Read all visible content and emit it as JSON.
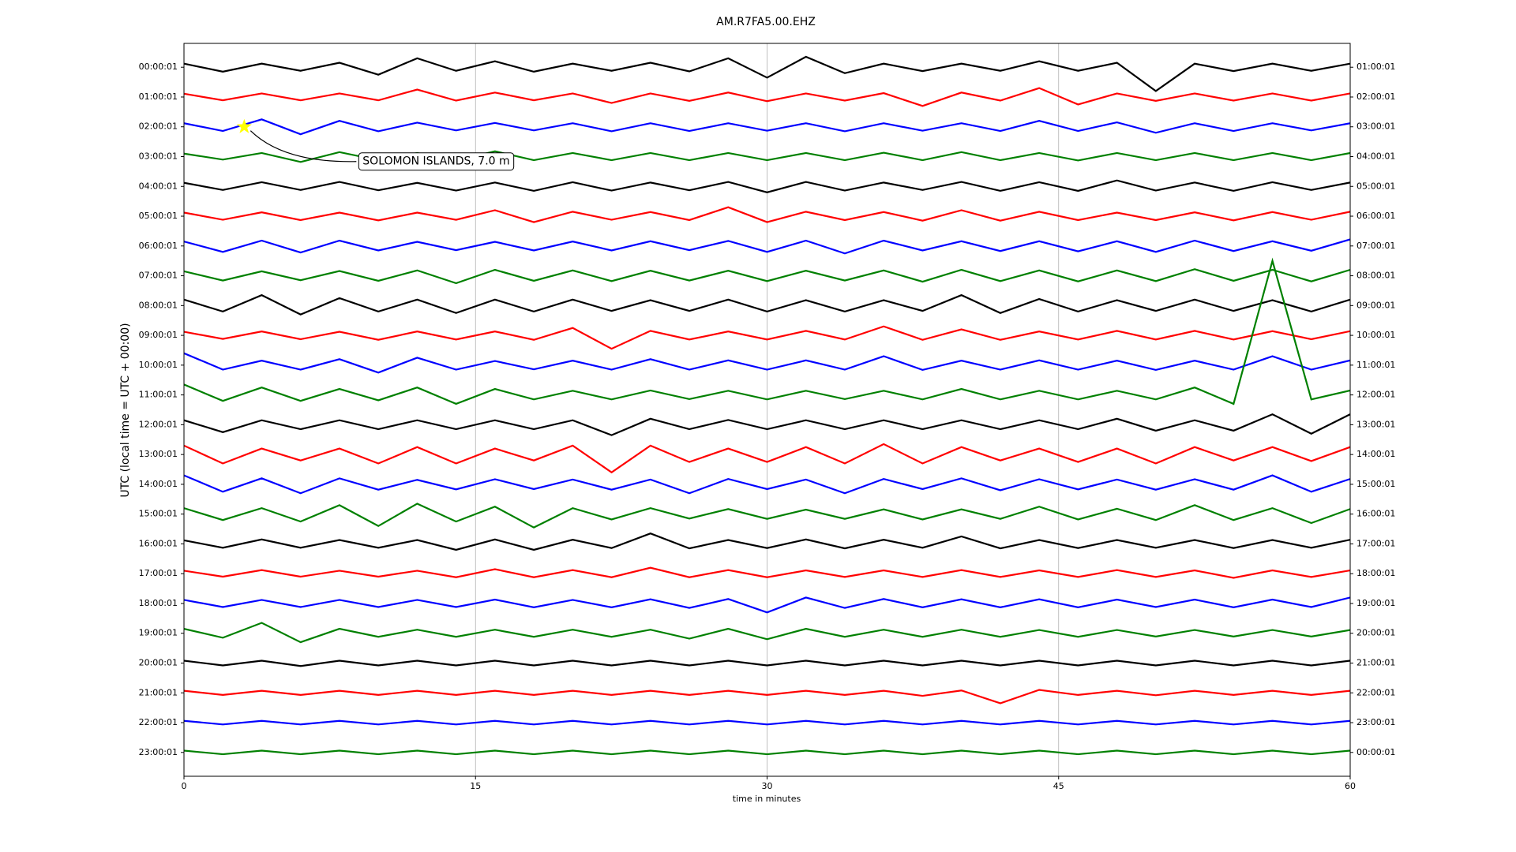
{
  "chart_data": {
    "type": "dayplot",
    "title": "AM.R7FA5.00.EHZ",
    "xlabel": "time in minutes",
    "ylabel": "UTC (local time = UTC + 00:00)",
    "xlim": [
      0,
      60
    ],
    "xticks": [
      0,
      15,
      30,
      45,
      60
    ],
    "grid": true,
    "ylim": [
      23.8,
      -0.8
    ],
    "yticks": [
      {
        "value": 0,
        "label": "00:00:01"
      },
      {
        "value": 1,
        "label": "01:00:01"
      },
      {
        "value": 2,
        "label": "02:00:01"
      },
      {
        "value": 3,
        "label": "03:00:01"
      },
      {
        "value": 4,
        "label": "04:00:01"
      },
      {
        "value": 5,
        "label": "05:00:01"
      },
      {
        "value": 6,
        "label": "06:00:01"
      },
      {
        "value": 7,
        "label": "07:00:01"
      },
      {
        "value": 8,
        "label": "08:00:01"
      },
      {
        "value": 9,
        "label": "09:00:01"
      },
      {
        "value": 10,
        "label": "10:00:01"
      },
      {
        "value": 11,
        "label": "11:00:01"
      },
      {
        "value": 12,
        "label": "12:00:01"
      },
      {
        "value": 13,
        "label": "13:00:01"
      },
      {
        "value": 14,
        "label": "14:00:01"
      },
      {
        "value": 15,
        "label": "15:00:01"
      },
      {
        "value": 16,
        "label": "16:00:01"
      },
      {
        "value": 17,
        "label": "17:00:01"
      },
      {
        "value": 18,
        "label": "18:00:01"
      },
      {
        "value": 19,
        "label": "19:00:01"
      },
      {
        "value": 20,
        "label": "20:00:01"
      },
      {
        "value": 21,
        "label": "21:00:01"
      },
      {
        "value": 22,
        "label": "22:00:01"
      },
      {
        "value": 23,
        "label": "23:00:01"
      }
    ],
    "y2ticks": [
      {
        "value": 0,
        "label": "01:00:01"
      },
      {
        "value": 1,
        "label": "02:00:01"
      },
      {
        "value": 2,
        "label": "03:00:01"
      },
      {
        "value": 3,
        "label": "04:00:01"
      },
      {
        "value": 4,
        "label": "05:00:01"
      },
      {
        "value": 5,
        "label": "06:00:01"
      },
      {
        "value": 6,
        "label": "07:00:01"
      },
      {
        "value": 7,
        "label": "08:00:01"
      },
      {
        "value": 8,
        "label": "09:00:01"
      },
      {
        "value": 9,
        "label": "10:00:01"
      },
      {
        "value": 10,
        "label": "11:00:01"
      },
      {
        "value": 11,
        "label": "12:00:01"
      },
      {
        "value": 12,
        "label": "13:00:01"
      },
      {
        "value": 13,
        "label": "14:00:01"
      },
      {
        "value": 14,
        "label": "15:00:01"
      },
      {
        "value": 15,
        "label": "16:00:01"
      },
      {
        "value": 16,
        "label": "17:00:01"
      },
      {
        "value": 17,
        "label": "18:00:01"
      },
      {
        "value": 18,
        "label": "19:00:01"
      },
      {
        "value": 19,
        "label": "20:00:01"
      },
      {
        "value": 20,
        "label": "21:00:01"
      },
      {
        "value": 21,
        "label": "22:00:01"
      },
      {
        "value": 22,
        "label": "23:00:01"
      },
      {
        "value": 23,
        "label": "00:00:01"
      }
    ],
    "x": [
      0,
      2,
      4,
      6,
      8,
      10,
      12,
      14,
      16,
      18,
      20,
      22,
      24,
      26,
      28,
      30,
      32,
      34,
      36,
      38,
      40,
      42,
      44,
      46,
      48,
      50,
      52,
      54,
      56,
      58,
      60
    ],
    "series": [
      {
        "color": "#000000",
        "values": [
          0.12,
          0.15,
          0.12,
          0.12,
          0.15,
          0.25,
          0.3,
          0.12,
          0.2,
          0.15,
          0.12,
          0.12,
          0.15,
          0.14,
          0.3,
          0.35,
          0.35,
          0.2,
          0.12,
          0.13,
          0.12,
          0.12,
          0.2,
          0.12,
          0.15,
          0.8,
          0.12,
          0.13,
          0.12,
          0.12,
          0.12
        ]
      },
      {
        "color": "#ff0000",
        "values": [
          0.11,
          0.11,
          0.12,
          0.11,
          0.12,
          0.11,
          0.25,
          0.12,
          0.15,
          0.11,
          0.12,
          0.2,
          0.12,
          0.13,
          0.15,
          0.14,
          0.12,
          0.12,
          0.13,
          0.3,
          0.15,
          0.12,
          0.3,
          0.25,
          0.12,
          0.13,
          0.12,
          0.12,
          0.12,
          0.12,
          0.12
        ]
      },
      {
        "color": "#0000ff",
        "values": [
          0.12,
          0.14,
          0.25,
          0.25,
          0.2,
          0.15,
          0.14,
          0.12,
          0.13,
          0.12,
          0.12,
          0.15,
          0.12,
          0.14,
          0.12,
          0.13,
          0.12,
          0.15,
          0.12,
          0.13,
          0.12,
          0.14,
          0.2,
          0.14,
          0.15,
          0.2,
          0.12,
          0.14,
          0.12,
          0.12,
          0.12
        ]
      },
      {
        "color": "#008000",
        "values": [
          0.1,
          0.1,
          0.12,
          0.18,
          0.15,
          0.12,
          0.12,
          0.13,
          0.18,
          0.12,
          0.12,
          0.12,
          0.12,
          0.12,
          0.12,
          0.12,
          0.12,
          0.12,
          0.13,
          0.12,
          0.15,
          0.12,
          0.12,
          0.13,
          0.12,
          0.12,
          0.12,
          0.12,
          0.12,
          0.12,
          0.12
        ]
      },
      {
        "color": "#000000",
        "values": [
          0.12,
          0.12,
          0.14,
          0.12,
          0.15,
          0.13,
          0.12,
          0.14,
          0.13,
          0.15,
          0.14,
          0.14,
          0.13,
          0.13,
          0.15,
          0.2,
          0.15,
          0.14,
          0.13,
          0.12,
          0.15,
          0.15,
          0.14,
          0.15,
          0.2,
          0.14,
          0.13,
          0.15,
          0.14,
          0.12,
          0.13
        ]
      },
      {
        "color": "#ff0000",
        "values": [
          0.12,
          0.12,
          0.13,
          0.13,
          0.12,
          0.14,
          0.12,
          0.12,
          0.2,
          0.2,
          0.15,
          0.12,
          0.14,
          0.13,
          0.3,
          0.2,
          0.15,
          0.13,
          0.14,
          0.15,
          0.2,
          0.15,
          0.15,
          0.13,
          0.12,
          0.13,
          0.13,
          0.14,
          0.14,
          0.12,
          0.15
        ]
      },
      {
        "color": "#0000ff",
        "values": [
          0.15,
          0.2,
          0.18,
          0.22,
          0.18,
          0.15,
          0.14,
          0.14,
          0.14,
          0.15,
          0.15,
          0.15,
          0.16,
          0.14,
          0.17,
          0.2,
          0.18,
          0.25,
          0.18,
          0.15,
          0.16,
          0.17,
          0.16,
          0.18,
          0.16,
          0.2,
          0.18,
          0.17,
          0.16,
          0.16,
          0.22
        ]
      },
      {
        "color": "#008000",
        "values": [
          0.15,
          0.16,
          0.15,
          0.15,
          0.16,
          0.17,
          0.18,
          0.25,
          0.2,
          0.17,
          0.18,
          0.18,
          0.17,
          0.16,
          0.17,
          0.18,
          0.17,
          0.16,
          0.18,
          0.2,
          0.2,
          0.18,
          0.18,
          0.19,
          0.18,
          0.18,
          0.22,
          0.17,
          0.2,
          0.19,
          0.2
        ]
      },
      {
        "color": "#000000",
        "values": [
          0.2,
          0.2,
          0.35,
          0.3,
          0.25,
          0.2,
          0.2,
          0.25,
          0.2,
          0.2,
          0.2,
          0.18,
          0.18,
          0.18,
          0.2,
          0.2,
          0.18,
          0.2,
          0.18,
          0.18,
          0.35,
          0.25,
          0.22,
          0.2,
          0.18,
          0.18,
          0.2,
          0.18,
          0.18,
          0.2,
          0.2
        ]
      },
      {
        "color": "#ff0000",
        "values": [
          0.12,
          0.12,
          0.13,
          0.13,
          0.12,
          0.15,
          0.13,
          0.14,
          0.13,
          0.15,
          0.25,
          0.45,
          0.15,
          0.14,
          0.13,
          0.14,
          0.15,
          0.14,
          0.3,
          0.15,
          0.2,
          0.15,
          0.13,
          0.14,
          0.15,
          0.14,
          0.15,
          0.14,
          0.14,
          0.13,
          0.14
        ]
      },
      {
        "color": "#0000ff",
        "values": [
          0.4,
          0.15,
          0.15,
          0.15,
          0.2,
          0.25,
          0.25,
          0.15,
          0.14,
          0.14,
          0.15,
          0.15,
          0.2,
          0.15,
          0.16,
          0.15,
          0.16,
          0.15,
          0.3,
          0.16,
          0.15,
          0.15,
          0.16,
          0.15,
          0.15,
          0.16,
          0.15,
          0.15,
          0.3,
          0.15,
          0.16
        ]
      },
      {
        "color": "#008000",
        "values": [
          0.35,
          0.2,
          0.25,
          0.2,
          0.2,
          0.18,
          0.25,
          0.3,
          0.2,
          0.15,
          0.14,
          0.15,
          0.15,
          0.14,
          0.14,
          0.15,
          0.14,
          0.14,
          0.14,
          0.15,
          0.2,
          0.15,
          0.14,
          0.15,
          0.14,
          0.15,
          0.25,
          0.3,
          4.5,
          0.15,
          0.15
        ]
      },
      {
        "color": "#000000",
        "values": [
          0.15,
          0.25,
          0.15,
          0.15,
          0.15,
          0.15,
          0.15,
          0.15,
          0.15,
          0.15,
          0.15,
          0.35,
          0.2,
          0.15,
          0.16,
          0.15,
          0.15,
          0.15,
          0.15,
          0.15,
          0.15,
          0.15,
          0.15,
          0.15,
          0.2,
          0.2,
          0.15,
          0.2,
          0.35,
          0.3,
          0.35
        ]
      },
      {
        "color": "#ff0000",
        "values": [
          0.3,
          0.3,
          0.2,
          0.2,
          0.2,
          0.3,
          0.25,
          0.3,
          0.2,
          0.2,
          0.3,
          0.6,
          0.3,
          0.25,
          0.2,
          0.25,
          0.25,
          0.3,
          0.35,
          0.3,
          0.25,
          0.2,
          0.2,
          0.25,
          0.2,
          0.3,
          0.25,
          0.2,
          0.25,
          0.22,
          0.25
        ]
      },
      {
        "color": "#0000ff",
        "values": [
          0.3,
          0.25,
          0.2,
          0.3,
          0.2,
          0.18,
          0.15,
          0.17,
          0.17,
          0.16,
          0.16,
          0.18,
          0.16,
          0.3,
          0.18,
          0.16,
          0.16,
          0.3,
          0.18,
          0.16,
          0.2,
          0.2,
          0.17,
          0.17,
          0.16,
          0.18,
          0.17,
          0.18,
          0.3,
          0.25,
          0.18
        ]
      },
      {
        "color": "#008000",
        "values": [
          0.2,
          0.2,
          0.2,
          0.25,
          0.3,
          0.4,
          0.35,
          0.25,
          0.25,
          0.45,
          0.2,
          0.18,
          0.2,
          0.15,
          0.17,
          0.16,
          0.15,
          0.16,
          0.16,
          0.18,
          0.16,
          0.16,
          0.25,
          0.18,
          0.18,
          0.2,
          0.3,
          0.2,
          0.2,
          0.3,
          0.17
        ]
      },
      {
        "color": "#000000",
        "values": [
          0.12,
          0.13,
          0.15,
          0.13,
          0.13,
          0.13,
          0.13,
          0.2,
          0.15,
          0.2,
          0.14,
          0.14,
          0.35,
          0.15,
          0.13,
          0.14,
          0.15,
          0.15,
          0.14,
          0.13,
          0.25,
          0.15,
          0.13,
          0.14,
          0.13,
          0.13,
          0.13,
          0.14,
          0.13,
          0.13,
          0.14
        ]
      },
      {
        "color": "#ff0000",
        "values": [
          0.1,
          0.1,
          0.12,
          0.1,
          0.1,
          0.1,
          0.1,
          0.12,
          0.15,
          0.12,
          0.12,
          0.12,
          0.2,
          0.12,
          0.12,
          0.12,
          0.11,
          0.11,
          0.11,
          0.11,
          0.12,
          0.11,
          0.11,
          0.11,
          0.12,
          0.11,
          0.11,
          0.14,
          0.11,
          0.11,
          0.11
        ]
      },
      {
        "color": "#0000ff",
        "values": [
          0.12,
          0.12,
          0.12,
          0.12,
          0.12,
          0.12,
          0.12,
          0.12,
          0.13,
          0.13,
          0.12,
          0.13,
          0.14,
          0.15,
          0.15,
          0.3,
          0.2,
          0.15,
          0.15,
          0.13,
          0.14,
          0.13,
          0.14,
          0.13,
          0.13,
          0.12,
          0.13,
          0.13,
          0.13,
          0.12,
          0.2
        ]
      },
      {
        "color": "#008000",
        "values": [
          0.15,
          0.15,
          0.35,
          0.3,
          0.15,
          0.12,
          0.12,
          0.12,
          0.12,
          0.12,
          0.12,
          0.12,
          0.12,
          0.18,
          0.15,
          0.2,
          0.15,
          0.12,
          0.12,
          0.12,
          0.12,
          0.12,
          0.11,
          0.12,
          0.11,
          0.11,
          0.11,
          0.11,
          0.11,
          0.11,
          0.11
        ]
      },
      {
        "color": "#000000",
        "values": [
          0.08,
          0.08,
          0.08,
          0.1,
          0.08,
          0.08,
          0.08,
          0.08,
          0.08,
          0.08,
          0.08,
          0.08,
          0.08,
          0.08,
          0.08,
          0.08,
          0.08,
          0.08,
          0.08,
          0.08,
          0.08,
          0.08,
          0.08,
          0.08,
          0.08,
          0.08,
          0.08,
          0.08,
          0.08,
          0.08,
          0.08
        ]
      },
      {
        "color": "#ff0000",
        "values": [
          0.07,
          0.07,
          0.07,
          0.07,
          0.07,
          0.07,
          0.07,
          0.07,
          0.07,
          0.07,
          0.07,
          0.07,
          0.07,
          0.07,
          0.07,
          0.07,
          0.07,
          0.07,
          0.07,
          0.1,
          0.08,
          0.35,
          0.1,
          0.07,
          0.07,
          0.08,
          0.07,
          0.07,
          0.07,
          0.07,
          0.07
        ]
      },
      {
        "color": "#0000ff",
        "values": [
          0.06,
          0.06,
          0.06,
          0.06,
          0.06,
          0.06,
          0.06,
          0.06,
          0.06,
          0.06,
          0.06,
          0.06,
          0.06,
          0.06,
          0.06,
          0.06,
          0.06,
          0.06,
          0.06,
          0.06,
          0.06,
          0.06,
          0.06,
          0.06,
          0.06,
          0.06,
          0.06,
          0.06,
          0.06,
          0.06,
          0.06
        ]
      },
      {
        "color": "#008000",
        "values": [
          0.06,
          0.06,
          0.06,
          0.06,
          0.06,
          0.06,
          0.06,
          0.06,
          0.06,
          0.06,
          0.06,
          0.06,
          0.06,
          0.06,
          0.06,
          0.06,
          0.06,
          0.06,
          0.06,
          0.06,
          0.06,
          0.06,
          0.06,
          0.06,
          0.06,
          0.06,
          0.06,
          0.06,
          0.06,
          0.06,
          0.06
        ]
      }
    ],
    "annotation": {
      "text": "SOLOMON ISLANDS, 7.0 m",
      "x": 3.1,
      "row": 2,
      "color": "#ffff00"
    }
  }
}
